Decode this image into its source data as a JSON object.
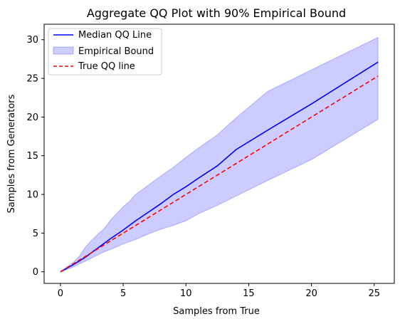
{
  "chart_data": {
    "type": "line",
    "title": "Aggregate QQ Plot with 90% Empirical Bound",
    "xlabel": "Samples from True",
    "ylabel": "Samples from Generators",
    "xlim": [
      -1.3,
      26.6
    ],
    "ylim": [
      -1.5,
      32.0
    ],
    "xticks": [
      0,
      5,
      10,
      15,
      20,
      25
    ],
    "yticks": [
      0,
      5,
      10,
      15,
      20,
      25,
      30
    ],
    "grid": false,
    "legend_position": "top-left",
    "series": [
      {
        "name": "Median QQ Line",
        "kind": "line",
        "color": "#0000ff",
        "dashed": false,
        "x": [
          0,
          1,
          2,
          3,
          4,
          5,
          6,
          7,
          8,
          9,
          10,
          11,
          12.5,
          14,
          16.5,
          20,
          25.3
        ],
        "y": [
          0,
          0.9,
          1.9,
          3.1,
          4.3,
          5.4,
          6.6,
          7.7,
          8.8,
          10.0,
          11.0,
          12.1,
          13.7,
          15.8,
          18.3,
          21.7,
          27.1
        ]
      },
      {
        "name": "Empirical Bound",
        "kind": "band",
        "color": "#0000ff",
        "opacity": 0.2,
        "x": [
          0,
          1,
          1.5,
          2,
          2.5,
          3,
          3.5,
          4,
          5,
          5.5,
          6,
          7,
          8,
          9,
          10,
          11,
          12.5,
          14,
          16.5,
          20,
          25.3
        ],
        "upper": [
          0,
          1.2,
          2.0,
          3.2,
          4.1,
          4.9,
          5.6,
          6.7,
          8.4,
          9.1,
          10.0,
          11.2,
          12.4,
          13.5,
          14.8,
          16.0,
          17.7,
          19.9,
          23.3,
          26.1,
          30.3
        ],
        "lower": [
          0,
          0.6,
          1.0,
          1.4,
          1.8,
          2.2,
          2.6,
          2.9,
          3.6,
          3.9,
          4.2,
          4.9,
          5.5,
          6.0,
          6.6,
          7.5,
          8.6,
          9.8,
          11.8,
          14.5,
          19.7
        ]
      },
      {
        "name": "True QQ line",
        "kind": "line",
        "color": "#ff0000",
        "dashed": true,
        "x": [
          0,
          25.3
        ],
        "y": [
          0,
          25.3
        ]
      }
    ]
  }
}
